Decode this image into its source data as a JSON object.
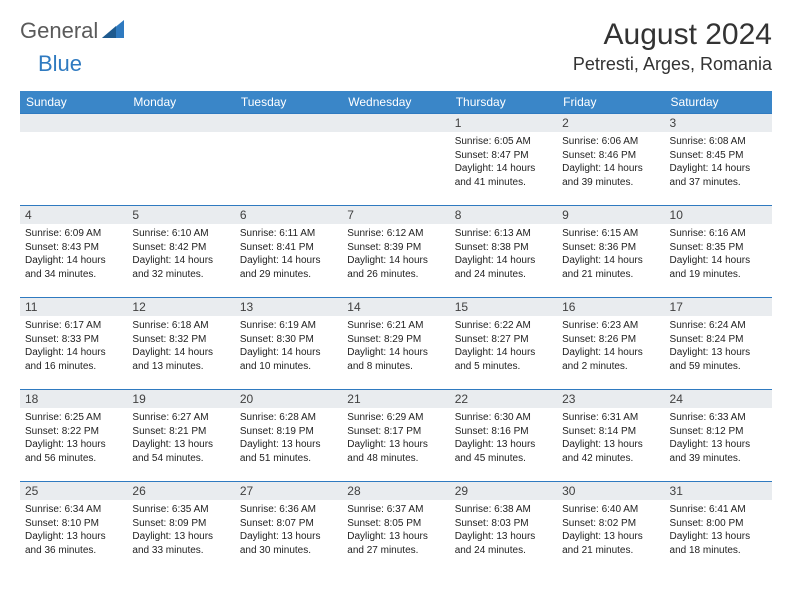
{
  "logo": {
    "gray": "General",
    "blue": "Blue"
  },
  "title": "August 2024",
  "location": "Petresti, Arges, Romania",
  "colors": {
    "header_bg": "#3a86c8",
    "border": "#2f7ac0",
    "daynum_bg": "#e9ecef",
    "text": "#000000",
    "logo_gray": "#5a5a5a",
    "logo_blue": "#2f7ac0"
  },
  "daysOfWeek": [
    "Sunday",
    "Monday",
    "Tuesday",
    "Wednesday",
    "Thursday",
    "Friday",
    "Saturday"
  ],
  "weeks": [
    [
      null,
      null,
      null,
      null,
      {
        "n": "1",
        "sr": "6:05 AM",
        "ss": "8:47 PM",
        "dl": "14 hours and 41 minutes."
      },
      {
        "n": "2",
        "sr": "6:06 AM",
        "ss": "8:46 PM",
        "dl": "14 hours and 39 minutes."
      },
      {
        "n": "3",
        "sr": "6:08 AM",
        "ss": "8:45 PM",
        "dl": "14 hours and 37 minutes."
      }
    ],
    [
      {
        "n": "4",
        "sr": "6:09 AM",
        "ss": "8:43 PM",
        "dl": "14 hours and 34 minutes."
      },
      {
        "n": "5",
        "sr": "6:10 AM",
        "ss": "8:42 PM",
        "dl": "14 hours and 32 minutes."
      },
      {
        "n": "6",
        "sr": "6:11 AM",
        "ss": "8:41 PM",
        "dl": "14 hours and 29 minutes."
      },
      {
        "n": "7",
        "sr": "6:12 AM",
        "ss": "8:39 PM",
        "dl": "14 hours and 26 minutes."
      },
      {
        "n": "8",
        "sr": "6:13 AM",
        "ss": "8:38 PM",
        "dl": "14 hours and 24 minutes."
      },
      {
        "n": "9",
        "sr": "6:15 AM",
        "ss": "8:36 PM",
        "dl": "14 hours and 21 minutes."
      },
      {
        "n": "10",
        "sr": "6:16 AM",
        "ss": "8:35 PM",
        "dl": "14 hours and 19 minutes."
      }
    ],
    [
      {
        "n": "11",
        "sr": "6:17 AM",
        "ss": "8:33 PM",
        "dl": "14 hours and 16 minutes."
      },
      {
        "n": "12",
        "sr": "6:18 AM",
        "ss": "8:32 PM",
        "dl": "14 hours and 13 minutes."
      },
      {
        "n": "13",
        "sr": "6:19 AM",
        "ss": "8:30 PM",
        "dl": "14 hours and 10 minutes."
      },
      {
        "n": "14",
        "sr": "6:21 AM",
        "ss": "8:29 PM",
        "dl": "14 hours and 8 minutes."
      },
      {
        "n": "15",
        "sr": "6:22 AM",
        "ss": "8:27 PM",
        "dl": "14 hours and 5 minutes."
      },
      {
        "n": "16",
        "sr": "6:23 AM",
        "ss": "8:26 PM",
        "dl": "14 hours and 2 minutes."
      },
      {
        "n": "17",
        "sr": "6:24 AM",
        "ss": "8:24 PM",
        "dl": "13 hours and 59 minutes."
      }
    ],
    [
      {
        "n": "18",
        "sr": "6:25 AM",
        "ss": "8:22 PM",
        "dl": "13 hours and 56 minutes."
      },
      {
        "n": "19",
        "sr": "6:27 AM",
        "ss": "8:21 PM",
        "dl": "13 hours and 54 minutes."
      },
      {
        "n": "20",
        "sr": "6:28 AM",
        "ss": "8:19 PM",
        "dl": "13 hours and 51 minutes."
      },
      {
        "n": "21",
        "sr": "6:29 AM",
        "ss": "8:17 PM",
        "dl": "13 hours and 48 minutes."
      },
      {
        "n": "22",
        "sr": "6:30 AM",
        "ss": "8:16 PM",
        "dl": "13 hours and 45 minutes."
      },
      {
        "n": "23",
        "sr": "6:31 AM",
        "ss": "8:14 PM",
        "dl": "13 hours and 42 minutes."
      },
      {
        "n": "24",
        "sr": "6:33 AM",
        "ss": "8:12 PM",
        "dl": "13 hours and 39 minutes."
      }
    ],
    [
      {
        "n": "25",
        "sr": "6:34 AM",
        "ss": "8:10 PM",
        "dl": "13 hours and 36 minutes."
      },
      {
        "n": "26",
        "sr": "6:35 AM",
        "ss": "8:09 PM",
        "dl": "13 hours and 33 minutes."
      },
      {
        "n": "27",
        "sr": "6:36 AM",
        "ss": "8:07 PM",
        "dl": "13 hours and 30 minutes."
      },
      {
        "n": "28",
        "sr": "6:37 AM",
        "ss": "8:05 PM",
        "dl": "13 hours and 27 minutes."
      },
      {
        "n": "29",
        "sr": "6:38 AM",
        "ss": "8:03 PM",
        "dl": "13 hours and 24 minutes."
      },
      {
        "n": "30",
        "sr": "6:40 AM",
        "ss": "8:02 PM",
        "dl": "13 hours and 21 minutes."
      },
      {
        "n": "31",
        "sr": "6:41 AM",
        "ss": "8:00 PM",
        "dl": "13 hours and 18 minutes."
      }
    ]
  ],
  "labels": {
    "sunrise": "Sunrise:",
    "sunset": "Sunset:",
    "daylight": "Daylight:"
  }
}
